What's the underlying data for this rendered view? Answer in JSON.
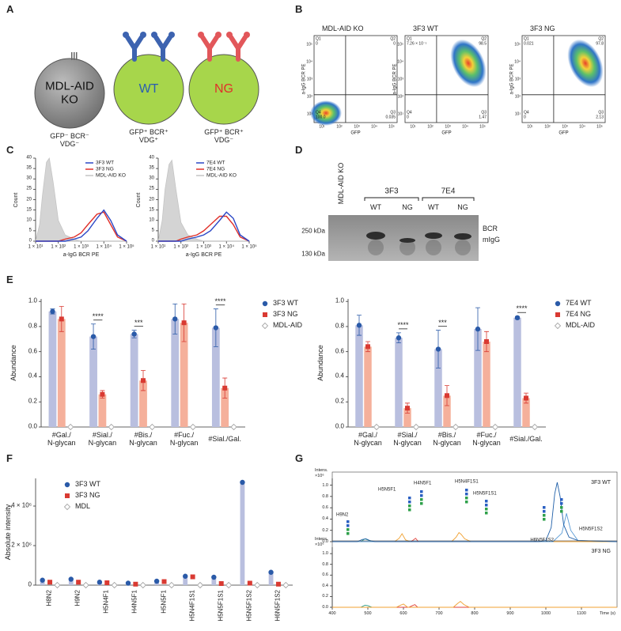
{
  "panel_labels": [
    "A",
    "B",
    "C",
    "D",
    "E",
    "F",
    "G"
  ],
  "diagram": {
    "cells": [
      {
        "label": "MDL-AID\nKO",
        "color": "#111111",
        "caption": "GFP⁻ BCR⁻\nVDG⁻"
      },
      {
        "label": "WT",
        "color": "#2a5db0",
        "caption": "GFP⁺ BCR⁺\nVDG⁺"
      },
      {
        "label": "NG",
        "color": "#e0302a",
        "caption": "GFP⁺ BCR⁺\nVDG⁻"
      }
    ]
  },
  "flow": {
    "x_label": "GFP",
    "y_label": "a-IgG BCR PE",
    "xticks": [
      "10¹",
      "10²",
      "10³",
      "10⁴",
      "10⁵"
    ],
    "yticks": [
      "10¹",
      "10²",
      "10³",
      "10⁴",
      "10⁵"
    ],
    "plots": [
      {
        "title": "MDL-AID KO",
        "quadrants": [
          {
            "name": "Q1",
            "value": "0"
          },
          {
            "name": "Q2",
            "value": "0"
          },
          {
            "name": "Q3",
            "value": "0.035"
          },
          {
            "name": "Q4",
            "value": "100.0"
          }
        ]
      },
      {
        "title": "3F3 WT",
        "quadrants": [
          {
            "name": "Q1",
            "value": "7.26 × 10⁻¹"
          },
          {
            "name": "Q2",
            "value": "98.5"
          },
          {
            "name": "Q3",
            "value": "1.47"
          },
          {
            "name": "Q4",
            "value": "0"
          }
        ]
      },
      {
        "title": "3F3 NG",
        "quadrants": [
          {
            "name": "Q1",
            "value": "0.021"
          },
          {
            "name": "Q2",
            "value": "97.8"
          },
          {
            "name": "Q3",
            "value": "2.13"
          },
          {
            "name": "Q4",
            "value": "0"
          }
        ]
      }
    ]
  },
  "gel": {
    "control": "MDL-AID KO",
    "groups": [
      {
        "name": "3F3",
        "lanes": [
          "WT",
          "NG"
        ]
      },
      {
        "name": "7E4",
        "lanes": [
          "WT",
          "NG"
        ]
      }
    ],
    "markers": [
      "250 kDa",
      "130 kDa"
    ],
    "bands": [
      "BCR",
      "mIgG"
    ]
  },
  "chart_data": [
    {
      "type": "line",
      "x_label": "a-IgG BCR PE",
      "y_label": "Count",
      "xscale": "log",
      "xlim": [
        10,
        100000
      ],
      "xticks": [
        {
          "value": 10,
          "label": "1 × 10¹"
        },
        {
          "value": 100,
          "label": "1 × 10²"
        },
        {
          "value": 1000,
          "label": "1 × 10³"
        },
        {
          "value": 10000,
          "label": "1 × 10⁴"
        },
        {
          "value": 100000,
          "label": "1 × 10⁵"
        }
      ],
      "ylim": [
        0,
        40
      ],
      "yticks": [
        0,
        5,
        10,
        15,
        20,
        25,
        30,
        35,
        40
      ],
      "x": [
        10,
        15,
        20,
        30,
        40,
        60,
        100,
        200,
        500,
        1000,
        2000,
        5000,
        10000,
        20000,
        40000,
        100000
      ],
      "series": [
        {
          "name": "3F3 WT",
          "color": "#2b47c6",
          "values": [
            0,
            0,
            0,
            0,
            0,
            0,
            0,
            0,
            1,
            2,
            5,
            11,
            15,
            10,
            3,
            0
          ]
        },
        {
          "name": "3F3 NG",
          "color": "#e0302a",
          "values": [
            0,
            0,
            0,
            0,
            0,
            0,
            0,
            1,
            2,
            4,
            8,
            13,
            14,
            8,
            2,
            0
          ]
        },
        {
          "name": "MDL-AID KO",
          "color": "#c4c4c4",
          "fill": "#d4d4d4",
          "values": [
            0,
            8,
            22,
            38,
            40,
            28,
            10,
            3,
            1,
            0,
            0,
            0,
            0,
            0,
            0,
            0
          ]
        }
      ]
    },
    {
      "type": "line",
      "x_label": "a-IgG BCR PE",
      "y_label": "Count",
      "xscale": "log",
      "xlim": [
        10,
        100000
      ],
      "xticks": [
        {
          "value": 10,
          "label": "1 × 10¹"
        },
        {
          "value": 100,
          "label": "1 × 10²"
        },
        {
          "value": 1000,
          "label": "1 × 10³"
        },
        {
          "value": 10000,
          "label": "1 × 10⁴"
        },
        {
          "value": 100000,
          "label": "1 × 10⁵"
        }
      ],
      "ylim": [
        0,
        40
      ],
      "yticks": [
        0,
        5,
        10,
        15,
        20,
        25,
        30,
        35,
        40
      ],
      "x": [
        10,
        15,
        20,
        30,
        40,
        60,
        100,
        200,
        500,
        1000,
        2000,
        5000,
        10000,
        20000,
        40000,
        100000
      ],
      "series": [
        {
          "name": "7E4 WT",
          "color": "#2b47c6",
          "values": [
            0,
            0,
            0,
            0,
            0,
            0,
            0,
            1,
            2,
            3,
            5,
            10,
            14,
            11,
            3,
            0
          ]
        },
        {
          "name": "7E4 NG",
          "color": "#e0302a",
          "values": [
            0,
            0,
            0,
            0,
            0,
            0,
            1,
            2,
            3,
            5,
            8,
            12,
            12,
            8,
            2,
            0
          ]
        },
        {
          "name": "MDL-AID KO",
          "color": "#c4c4c4",
          "fill": "#d4d4d4",
          "values": [
            0,
            10,
            25,
            37,
            39,
            25,
            9,
            3,
            1,
            0,
            0,
            0,
            0,
            0,
            0,
            0
          ]
        }
      ]
    },
    {
      "type": "bar",
      "y_label": "Abundance",
      "ylim": [
        0,
        1.02
      ],
      "yticks": [
        {
          "value": 0,
          "label": "0.0"
        },
        {
          "value": 0.2,
          "label": "0.2"
        },
        {
          "value": 0.4,
          "label": "0.4"
        },
        {
          "value": 0.6,
          "label": "0.6"
        },
        {
          "value": 0.8,
          "label": "0.8"
        },
        {
          "value": 1,
          "label": "1.0"
        }
      ],
      "categories": [
        "#Gal./\nN-glycan",
        "#Sial./\nN-glycan",
        "#Bis./\nN-glycan",
        "#Fuc./\nN-glycan",
        "#Sial./Gal."
      ],
      "significance": [
        null,
        "****",
        "***",
        null,
        "****"
      ],
      "series": [
        {
          "name": "3F3 WT",
          "color": "#2a5aa8",
          "bar_color": "#b9bfdf",
          "marker": "circle",
          "values": [
            0.92,
            0.72,
            0.74,
            0.86,
            0.79
          ],
          "errors": [
            0.02,
            0.1,
            0.03,
            0.12,
            0.15
          ]
        },
        {
          "name": "3F3 NG",
          "color": "#d93a32",
          "bar_color": "#f5b09b",
          "marker": "square",
          "values": [
            0.86,
            0.26,
            0.37,
            0.83,
            0.31
          ],
          "errors": [
            0.1,
            0.03,
            0.08,
            0.15,
            0.08
          ]
        },
        {
          "name": "MDL-AID",
          "color": "#9a9a9a",
          "marker": "diamond",
          "values": [
            0,
            0,
            0,
            0,
            0
          ]
        }
      ]
    },
    {
      "type": "bar",
      "y_label": "Abundance",
      "ylim": [
        0,
        1.02
      ],
      "yticks": [
        {
          "value": 0,
          "label": "0.0"
        },
        {
          "value": 0.2,
          "label": "0.2"
        },
        {
          "value": 0.4,
          "label": "0.4"
        },
        {
          "value": 0.6,
          "label": "0.6"
        },
        {
          "value": 0.8,
          "label": "0.8"
        },
        {
          "value": 1,
          "label": "1.0"
        }
      ],
      "categories": [
        "#Gal./\nN-glycan",
        "#Sial./\nN-glycan",
        "#Bis./\nN-glycan",
        "#Fuc./\nN-glycan",
        "#Sial./Gal."
      ],
      "significance": [
        null,
        "****",
        "***",
        null,
        "****"
      ],
      "series": [
        {
          "name": "7E4 WT",
          "color": "#2a5aa8",
          "bar_color": "#b9bfdf",
          "marker": "circle",
          "values": [
            0.81,
            0.71,
            0.62,
            0.78,
            0.87
          ],
          "errors": [
            0.08,
            0.04,
            0.15,
            0.17,
            0.01
          ]
        },
        {
          "name": "7E4 NG",
          "color": "#d93a32",
          "bar_color": "#f5b09b",
          "marker": "square",
          "values": [
            0.64,
            0.15,
            0.25,
            0.68,
            0.23
          ],
          "errors": [
            0.04,
            0.04,
            0.08,
            0.08,
            0.04
          ]
        },
        {
          "name": "MDL-AID",
          "color": "#9a9a9a",
          "marker": "diamond",
          "values": [
            0,
            0,
            0,
            0,
            0
          ]
        }
      ]
    },
    {
      "type": "bar",
      "y_label": "Absolute intensity",
      "ylim": [
        0,
        5400000
      ],
      "yticks": [
        0,
        {
          "value": 2000000,
          "label": "2 × 10⁶"
        },
        {
          "value": 4000000,
          "label": "4 × 10⁶"
        }
      ],
      "categories": [
        "H8N2",
        "H9N2",
        "H5N4F1",
        "H4N5F1",
        "H5N5F1",
        "H5N4F1S1",
        "H5N5F1S1",
        "H5N5F1S2",
        "H6N5F1S2"
      ],
      "series": [
        {
          "name": "3F3 WT",
          "color": "#2a5aa8",
          "bar_color": "#b9bfdf",
          "marker": "circle",
          "values": [
            250000,
            300000,
            150000,
            100000,
            200000,
            450000,
            400000,
            5200000,
            650000
          ]
        },
        {
          "name": "3F3 NG",
          "color": "#d93a32",
          "marker": "square",
          "values": [
            150000,
            150000,
            120000,
            50000,
            180000,
            420000,
            80000,
            100000,
            50000
          ]
        },
        {
          "name": "MDL",
          "color": "#9a9a9a",
          "marker": "diamond",
          "values": [
            0,
            0,
            0,
            0,
            0,
            0,
            0,
            0,
            0
          ]
        }
      ]
    },
    {
      "type": "line",
      "title": "3F3 WT",
      "y_label": "Intens.",
      "y_unit": "×10⁶",
      "xlim": [
        400,
        1200
      ],
      "ylim": [
        0,
        1.12
      ],
      "yticks": [
        {
          "value": 0,
          "label": "0.0"
        },
        {
          "value": 0.2,
          "label": "0.2"
        },
        {
          "value": 0.4,
          "label": "0.4"
        },
        {
          "value": 0.6,
          "label": "0.6"
        },
        {
          "value": 0.8,
          "label": "0.8"
        },
        {
          "value": 1,
          "label": "1.0"
        }
      ],
      "annotations": [
        "H9N2",
        "H5N5F1",
        "H4N5F1",
        "H5N4F1S1",
        "H5N5F1S1",
        "H6N5F1S2",
        "H5N5F1S2"
      ],
      "series": [
        {
          "color": "#1f5fa8",
          "x": [
            400,
            470,
            485,
            495,
            505,
            520,
            980,
            1000,
            1015,
            1025,
            1032,
            1040,
            1050,
            1065,
            1090,
            1200
          ],
          "values": [
            0,
            0,
            0.04,
            0.05,
            0.02,
            0,
            0,
            0.02,
            0.25,
            0.85,
            1.05,
            0.8,
            0.3,
            0.08,
            0.02,
            0
          ]
        },
        {
          "color": "#5a9bd5",
          "x": [
            400,
            1020,
            1045,
            1058,
            1070,
            1090,
            1200
          ],
          "values": [
            0,
            0,
            0.15,
            0.5,
            0.2,
            0.02,
            0
          ]
        },
        {
          "color": "#f0a030",
          "x": [
            400,
            575,
            588,
            596,
            606,
            620,
            735,
            748,
            756,
            762,
            772,
            790,
            1200
          ],
          "values": [
            0,
            0,
            0.06,
            0.14,
            0.03,
            0,
            0,
            0.08,
            0.16,
            0.13,
            0.05,
            0,
            0
          ]
        },
        {
          "color": "#e0403a",
          "x": [
            400,
            620,
            628,
            634,
            642,
            1200
          ],
          "values": [
            0,
            0,
            0.03,
            0.06,
            0,
            0
          ]
        },
        {
          "color": "#2e9e8a",
          "x": [
            400,
            480,
            492,
            500,
            515,
            1200
          ],
          "values": [
            0,
            0,
            0.05,
            0.03,
            0,
            0
          ]
        }
      ]
    },
    {
      "type": "line",
      "title": "3F3 NG",
      "y_label": "Intens.",
      "y_unit": "×10⁶",
      "x_label": "Time (s)",
      "xlim": [
        400,
        1200
      ],
      "ylim": [
        0,
        1.12
      ],
      "xticks": [
        400,
        500,
        600,
        700,
        800,
        900,
        1000,
        1100
      ],
      "yticks": [
        {
          "value": 0,
          "label": "0.0"
        },
        {
          "value": 0.2,
          "label": "0.2"
        },
        {
          "value": 0.4,
          "label": "0.4"
        },
        {
          "value": 0.6,
          "label": "0.6"
        },
        {
          "value": 0.8,
          "label": "0.8"
        },
        {
          "value": 1,
          "label": "1.0"
        }
      ],
      "series": [
        {
          "color": "#f0a030",
          "x": [
            400,
            580,
            592,
            600,
            612,
            740,
            752,
            760,
            770,
            785,
            1200
          ],
          "values": [
            0,
            0,
            0.04,
            0.06,
            0,
            0,
            0.07,
            0.11,
            0.05,
            0,
            0
          ]
        },
        {
          "color": "#e0403a",
          "x": [
            400,
            615,
            625,
            632,
            640,
            1200
          ],
          "values": [
            0,
            0,
            0.03,
            0.05,
            0,
            0
          ]
        },
        {
          "color": "#2e9e8a",
          "x": [
            400,
            480,
            492,
            500,
            512,
            1200
          ],
          "values": [
            0,
            0,
            0.04,
            0.03,
            0,
            0
          ]
        }
      ]
    }
  ]
}
